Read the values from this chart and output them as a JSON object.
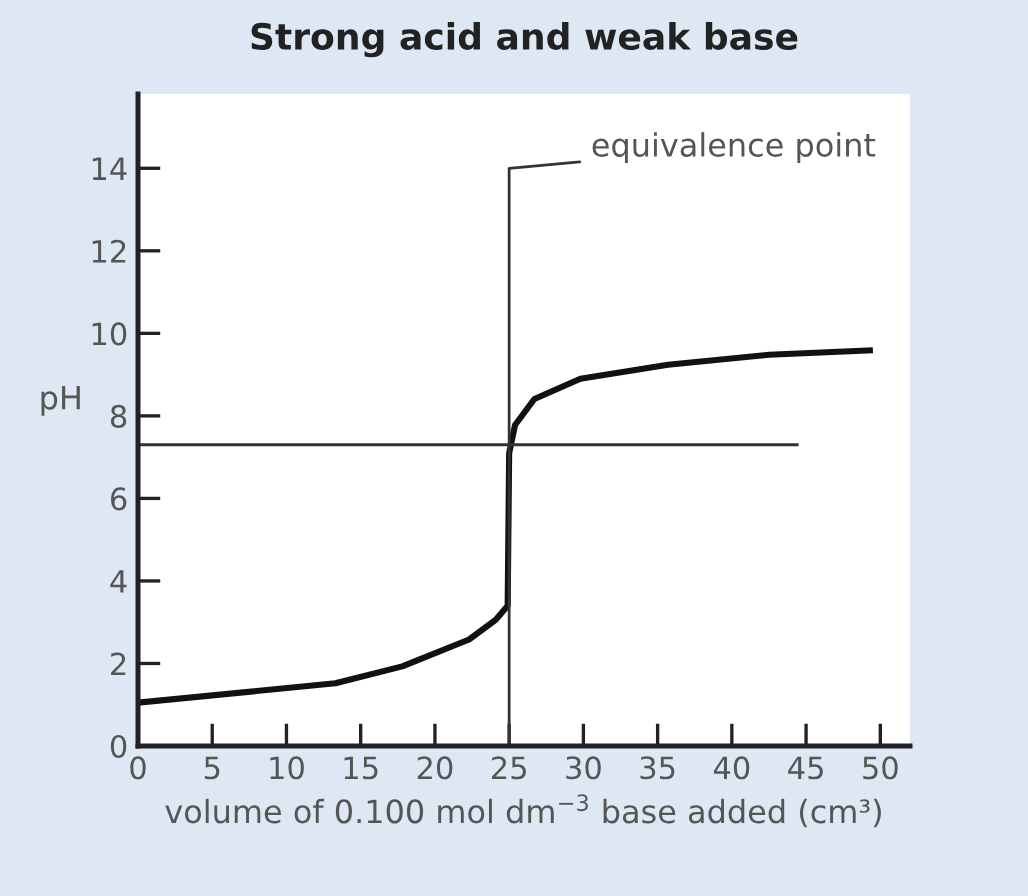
{
  "chart_data": {
    "type": "line",
    "title": "Strong acid and weak base",
    "xlabel": "volume of 0.100 mol dm$^{−3}$ base added (cm³)",
    "ylabel": "pH",
    "xlim": [
      0,
      52
    ],
    "ylim": [
      0,
      15.8
    ],
    "xticks": [
      0,
      5,
      10,
      15,
      20,
      25,
      30,
      35,
      40,
      45,
      50
    ],
    "yticks": [
      0,
      2,
      4,
      6,
      8,
      10,
      12,
      14
    ],
    "series": [
      {
        "color": "#111111",
        "x": [
          0,
          13.3,
          17.8,
          22.3,
          24.1,
          24.9,
          25,
          25.4,
          26.7,
          29.8,
          35.7,
          42.5,
          49.5
        ],
        "values": [
          1.05,
          1.52,
          1.93,
          2.58,
          3.06,
          3.4,
          7.1,
          7.78,
          8.41,
          8.9,
          9.24,
          9.48,
          9.59
        ]
      },
      {
        "color": "#333333",
        "x": [
          0,
          44.5
        ],
        "values": [
          7.3,
          7.3
        ]
      },
      {
        "color": "#333333",
        "x": [
          25,
          25
        ],
        "values": [
          0,
          14
        ]
      }
    ],
    "annotations": [
      {
        "text": "equivalence point",
        "x": 25,
        "y": 14
      }
    ],
    "grid": false,
    "legend": false,
    "marker": "none",
    "line_style": "solid"
  }
}
